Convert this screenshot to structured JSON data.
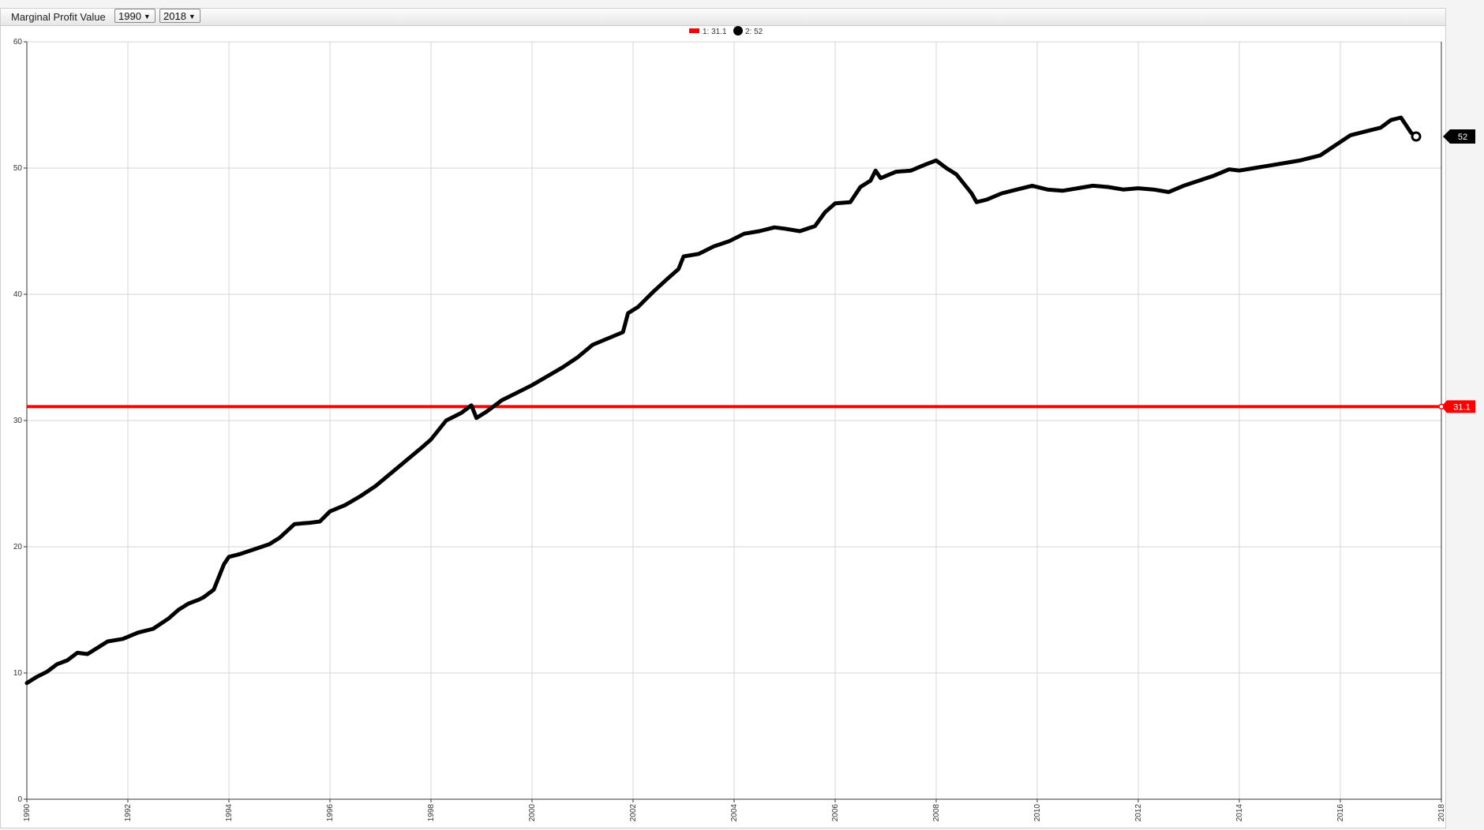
{
  "header": {
    "title": "Marginal Profit Value",
    "start_year": "1990",
    "end_year": "2018"
  },
  "chart_data": {
    "type": "line",
    "xlim": [
      1990,
      2018
    ],
    "ylim": [
      0,
      60
    ],
    "x_ticks": [
      "1990",
      "1992",
      "1994",
      "1996",
      "1998",
      "2000",
      "2002",
      "2004",
      "2006",
      "2008",
      "2010",
      "2012",
      "2014",
      "2016",
      "2018"
    ],
    "y_ticks": [
      "0",
      "10",
      "20",
      "30",
      "40",
      "50",
      "60"
    ],
    "grid": true,
    "legend_position": "top-center",
    "legend": [
      {
        "label": "1: 31.1",
        "color": "#ff0000",
        "marker": "bar"
      },
      {
        "label": "2: 52",
        "color": "#000000",
        "marker": "dot"
      }
    ],
    "series": [
      {
        "name": "1",
        "kind": "threshold",
        "color": "#ff0000",
        "value": 31.1,
        "tag": "31.1"
      },
      {
        "name": "2",
        "kind": "line",
        "color": "#000000",
        "tag": "52",
        "x": [
          1990.0,
          1990.2,
          1990.4,
          1990.6,
          1990.8,
          1991.0,
          1991.2,
          1991.4,
          1991.6,
          1991.9,
          1992.2,
          1992.5,
          1992.8,
          1993.0,
          1993.2,
          1993.4,
          1993.5,
          1993.7,
          1993.9,
          1994.0,
          1994.2,
          1994.5,
          1994.8,
          1995.0,
          1995.3,
          1995.6,
          1995.8,
          1996.0,
          1996.3,
          1996.6,
          1996.9,
          1997.2,
          1997.5,
          1997.8,
          1998.0,
          1998.3,
          1998.6,
          1998.8,
          1998.9,
          1999.1,
          1999.4,
          1999.7,
          2000.0,
          2000.3,
          2000.6,
          2000.9,
          2001.2,
          2001.5,
          2001.8,
          2001.9,
          2002.1,
          2002.4,
          2002.7,
          2002.9,
          2003.0,
          2003.3,
          2003.6,
          2003.9,
          2004.2,
          2004.5,
          2004.8,
          2005.0,
          2005.3,
          2005.6,
          2005.8,
          2006.0,
          2006.3,
          2006.5,
          2006.7,
          2006.8,
          2006.9,
          2007.2,
          2007.5,
          2007.8,
          2008.0,
          2008.2,
          2008.4,
          2008.7,
          2008.8,
          2009.0,
          2009.3,
          2009.6,
          2009.9,
          2010.2,
          2010.5,
          2010.8,
          2011.1,
          2011.4,
          2011.7,
          2012.0,
          2012.3,
          2012.6,
          2012.9,
          2013.2,
          2013.5,
          2013.8,
          2014.0,
          2014.3,
          2014.6,
          2014.9,
          2015.2,
          2015.4,
          2015.6,
          2015.9,
          2016.2,
          2016.5,
          2016.8,
          2017.0,
          2017.2,
          2017.4,
          2017.5
        ],
        "y": [
          9.2,
          9.7,
          10.1,
          10.7,
          11.0,
          11.6,
          11.5,
          12.0,
          12.5,
          12.7,
          13.2,
          13.5,
          14.3,
          15.0,
          15.5,
          15.8,
          16.0,
          16.6,
          18.6,
          19.2,
          19.4,
          19.8,
          20.2,
          20.7,
          21.8,
          21.9,
          22.0,
          22.8,
          23.3,
          24.0,
          24.8,
          25.8,
          26.8,
          27.8,
          28.5,
          30.0,
          30.6,
          31.2,
          30.2,
          30.7,
          31.6,
          32.2,
          32.8,
          33.5,
          34.2,
          35.0,
          36.0,
          36.5,
          37.0,
          38.5,
          39.0,
          40.2,
          41.3,
          42.0,
          43.0,
          43.2,
          43.8,
          44.2,
          44.8,
          45.0,
          45.3,
          45.2,
          45.0,
          45.4,
          46.5,
          47.2,
          47.3,
          48.5,
          49.0,
          49.8,
          49.2,
          49.7,
          49.8,
          50.3,
          50.6,
          50.0,
          49.5,
          48.0,
          47.3,
          47.5,
          48.0,
          48.3,
          48.6,
          48.3,
          48.2,
          48.4,
          48.6,
          48.5,
          48.3,
          48.4,
          48.3,
          48.1,
          48.6,
          49.0,
          49.4,
          49.9,
          49.8,
          50.0,
          50.2,
          50.4,
          50.6,
          50.8,
          51.0,
          51.8,
          52.6,
          52.9,
          53.2,
          53.8,
          54.0,
          52.8,
          52.5
        ]
      }
    ]
  }
}
